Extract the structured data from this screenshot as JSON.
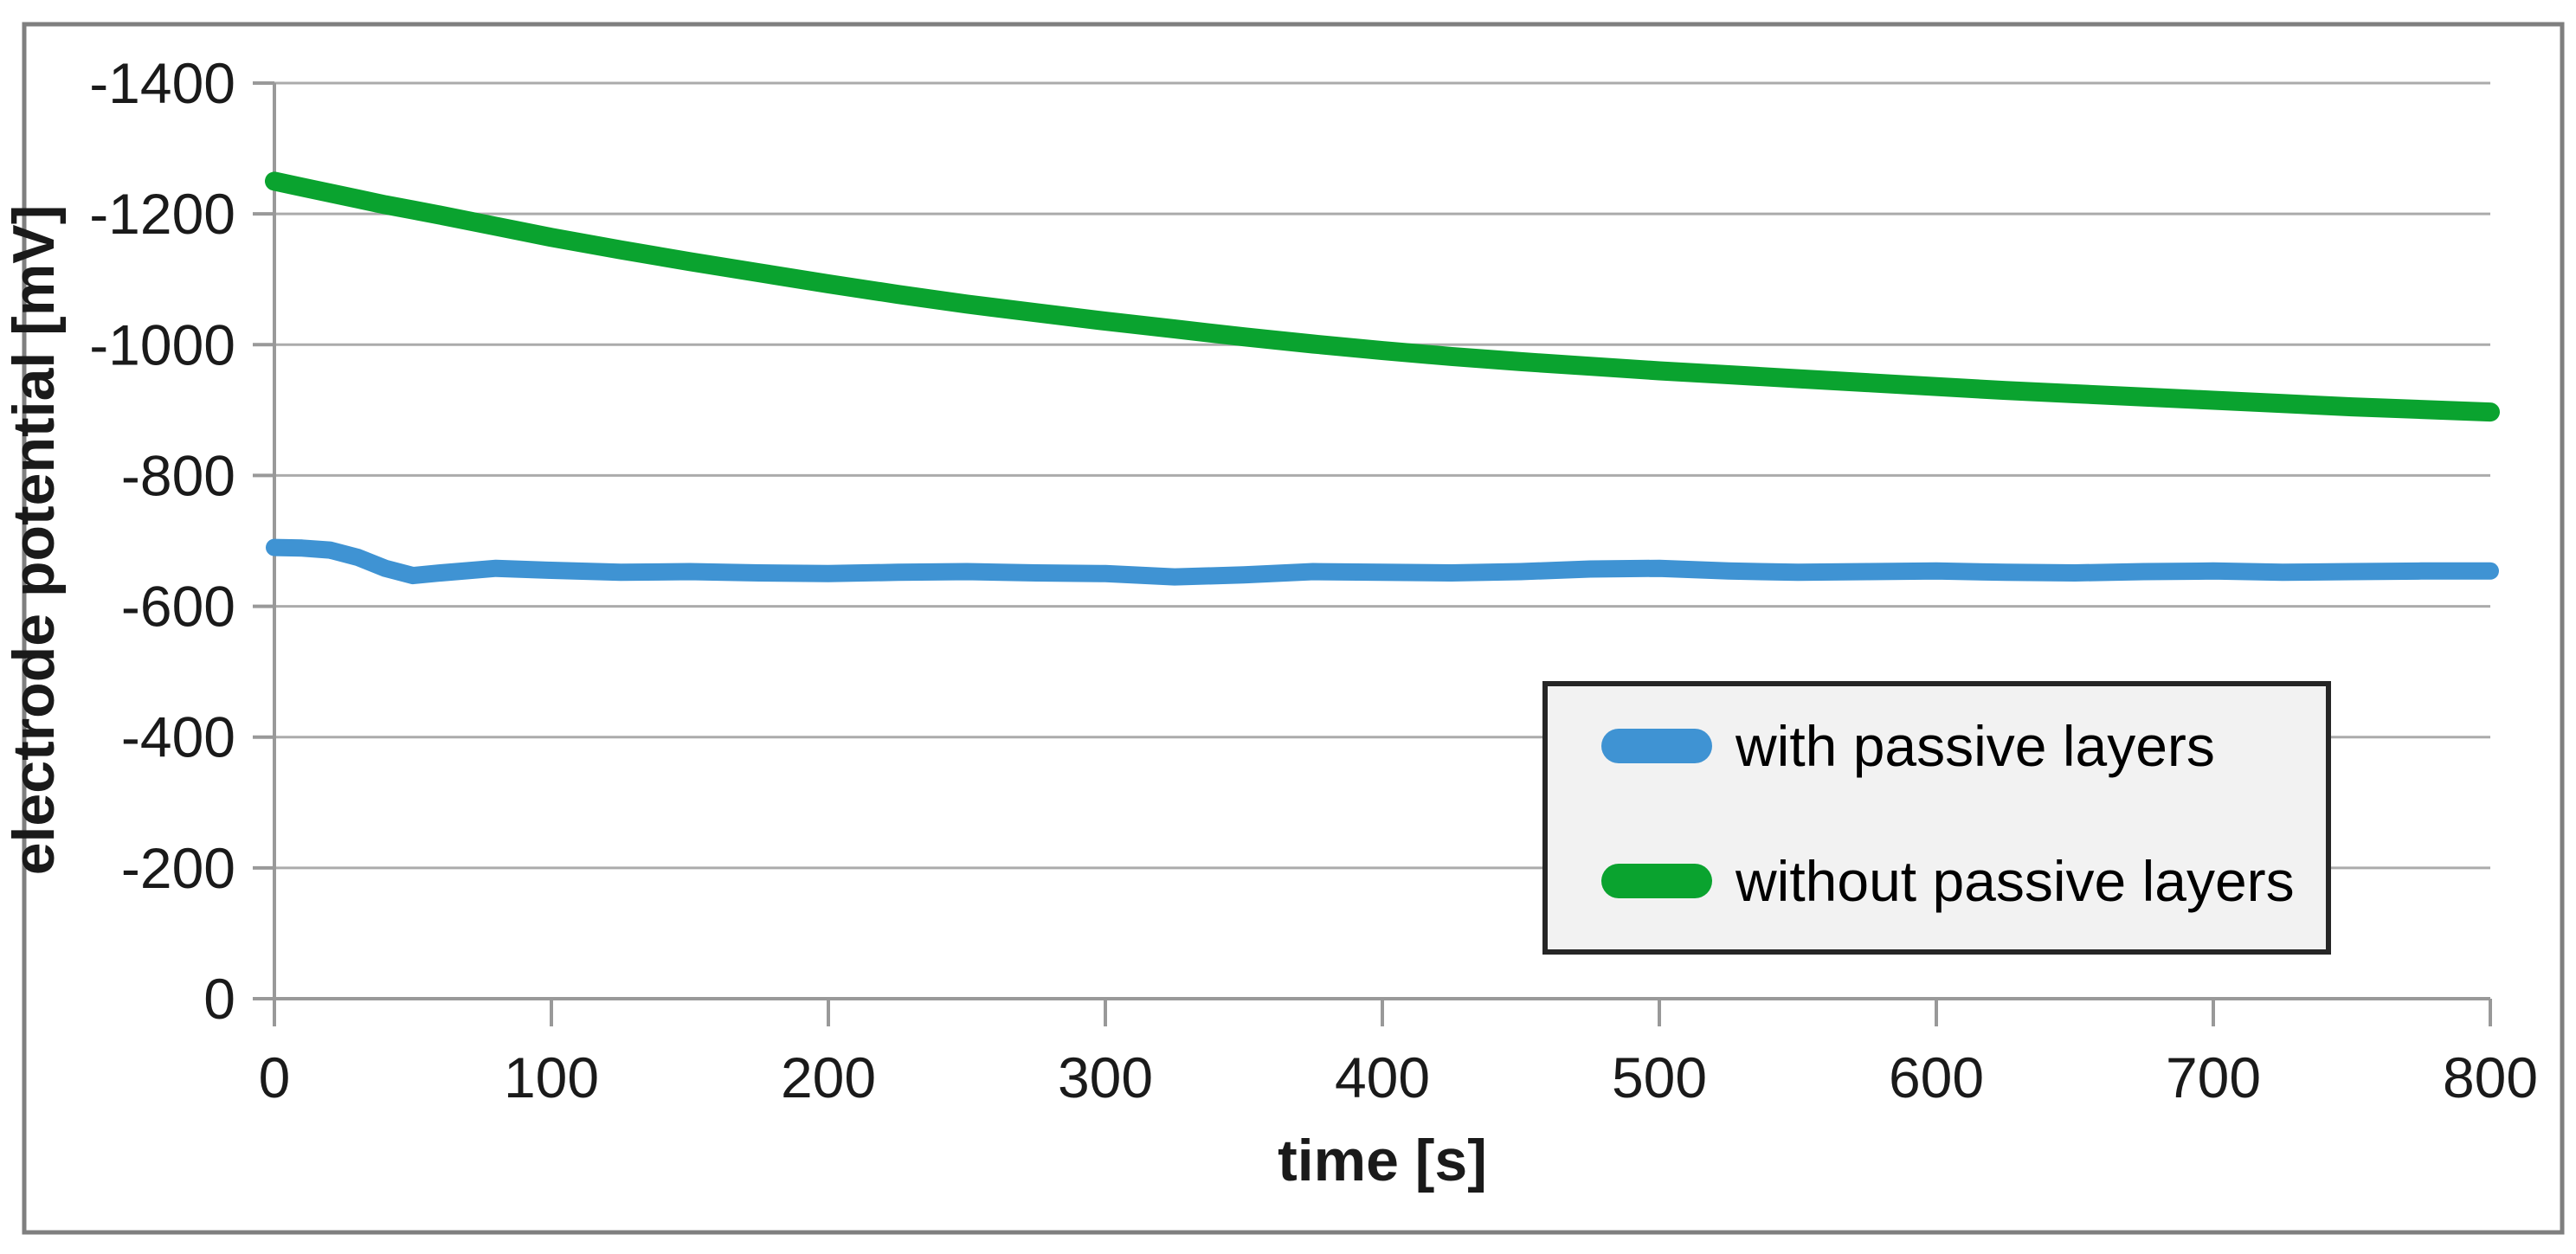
{
  "chart_data": {
    "type": "line",
    "title": "",
    "xlabel": "time [s]",
    "ylabel": "electrode potential [mV]",
    "xlim": [
      0,
      800
    ],
    "ylim": [
      -1400,
      0
    ],
    "y_axis_inverted": true,
    "grid": "horizontal",
    "legend_position": "inside-center-right",
    "x_ticks": {
      "values": [
        0,
        100,
        200,
        300,
        400,
        500,
        600,
        700,
        800
      ],
      "labels": [
        "0",
        "100",
        "200",
        "300",
        "400",
        "500",
        "600",
        "700",
        "800"
      ]
    },
    "y_ticks": {
      "values": [
        -1400,
        -1200,
        -1000,
        -800,
        -600,
        -400,
        -200,
        0
      ],
      "labels": [
        "-1400",
        "-1200",
        "-1000",
        "-800",
        "-600",
        "-400",
        "-200",
        "0"
      ]
    },
    "x": [
      0,
      10,
      20,
      30,
      40,
      50,
      60,
      80,
      100,
      125,
      150,
      175,
      200,
      225,
      250,
      275,
      300,
      325,
      350,
      375,
      400,
      425,
      450,
      475,
      500,
      525,
      550,
      575,
      600,
      625,
      650,
      675,
      700,
      725,
      750,
      775,
      800
    ],
    "series": [
      {
        "name": "with passive layers",
        "color": "#3f93d3",
        "stroke_width": 20,
        "values": [
          -690,
          -689,
          -686,
          -675,
          -658,
          -647,
          -651,
          -658,
          -655,
          -652,
          -653,
          -651,
          -650,
          -652,
          -653,
          -651,
          -650,
          -645,
          -648,
          -653,
          -652,
          -651,
          -653,
          -657,
          -658,
          -654,
          -652,
          -653,
          -654,
          -652,
          -651,
          -653,
          -654,
          -652,
          -653,
          -654,
          -654
        ]
      },
      {
        "name": "without passive layers",
        "color": "#0aa32f",
        "stroke_width": 22,
        "values": [
          -1250,
          -1241,
          -1232,
          -1223,
          -1214,
          -1206,
          -1198,
          -1181,
          -1164,
          -1145,
          -1127,
          -1110,
          -1093,
          -1077,
          -1062,
          -1049,
          -1036,
          -1024,
          -1012,
          -1001,
          -991,
          -982,
          -974,
          -967,
          -960,
          -954,
          -948,
          -942,
          -936,
          -930,
          -925,
          -920,
          -915,
          -910,
          -905,
          -901,
          -897
        ]
      }
    ],
    "colors": {
      "gridline": "#ababab",
      "axis": "#999999",
      "figure_border": "#7f7f7f",
      "legend_border": "#262626",
      "legend_background": "#f2f2f2",
      "plot_background": "#ffffff"
    }
  }
}
